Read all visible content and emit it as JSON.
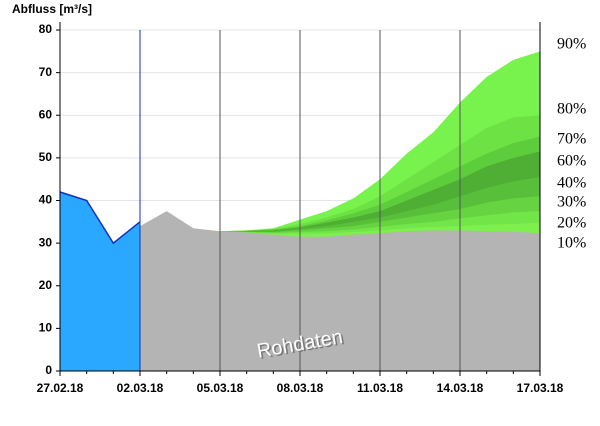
{
  "chart_data": {
    "type": "area",
    "title": "Abfluss [m³/s]",
    "annotation": "Rohdaten",
    "x": [
      "27.02.18",
      "28.02.18",
      "01.03.18",
      "02.03.18",
      "03.03.18",
      "04.03.18",
      "05.03.18",
      "06.03.18",
      "07.03.18",
      "08.03.18",
      "09.03.18",
      "10.03.18",
      "11.03.18",
      "12.03.18",
      "13.03.18",
      "14.03.18",
      "15.03.18",
      "16.03.18",
      "17.03.18"
    ],
    "xlim": [
      "27.02.18",
      "17.03.18"
    ],
    "xticks": [
      "27.02.18",
      "02.03.18",
      "05.03.18",
      "08.03.18",
      "11.03.18",
      "14.03.18",
      "17.03.18"
    ],
    "ylim": [
      0,
      80
    ],
    "yticks": [
      0,
      10,
      20,
      30,
      40,
      50,
      60,
      70,
      80
    ],
    "grid": true,
    "observed": {
      "color": "#2aa8ff",
      "line_color": "#1030c0",
      "values": [
        42,
        40,
        30,
        35,
        null,
        null,
        null,
        null,
        null,
        null,
        null,
        null,
        null,
        null,
        null,
        null,
        null,
        null,
        null
      ]
    },
    "raw": {
      "color": "#b4b4b4",
      "values": [
        null,
        null,
        null,
        34,
        37.5,
        33.5,
        32.8,
        32.5,
        32,
        31.5,
        31.5,
        32,
        32.3,
        32.8,
        33,
        33,
        32.8,
        32.7,
        32.3
      ]
    },
    "series": [
      {
        "name": "90%",
        "color": "#78f24c",
        "values": [
          null,
          null,
          null,
          null,
          null,
          null,
          32.8,
          33,
          33.5,
          35.5,
          37.5,
          40.5,
          45,
          51,
          56,
          63,
          69,
          73,
          75
        ]
      },
      {
        "name": "80%",
        "color": "#6ce244",
        "values": [
          null,
          null,
          null,
          null,
          null,
          null,
          32.8,
          33,
          33.3,
          34.5,
          36,
          38,
          41,
          45,
          49,
          53,
          57,
          59.5,
          60
        ]
      },
      {
        "name": "70%",
        "color": "#5ecd3c",
        "values": [
          null,
          null,
          null,
          null,
          null,
          null,
          32.8,
          32.9,
          33.2,
          34,
          35.3,
          37,
          39,
          42,
          45,
          48,
          51,
          53.5,
          55
        ]
      },
      {
        "name": "60%",
        "color": "#4fae34",
        "values": [
          null,
          null,
          null,
          null,
          null,
          null,
          32.8,
          32.8,
          33,
          33.7,
          34.8,
          36,
          37.5,
          40,
          42.5,
          45,
          48,
          50,
          51.5
        ]
      },
      {
        "name": "40%",
        "color": "#58bf3a",
        "values": [
          null,
          null,
          null,
          null,
          null,
          null,
          32.8,
          32.7,
          32.8,
          33.3,
          34,
          35,
          36,
          37.5,
          39,
          41,
          43,
          44.5,
          45.5
        ]
      },
      {
        "name": "30%",
        "color": "#66d440",
        "values": [
          null,
          null,
          null,
          null,
          null,
          null,
          32.8,
          32.6,
          32.6,
          33,
          33.5,
          34,
          35,
          36,
          37,
          38,
          39.5,
          40.5,
          41
        ]
      },
      {
        "name": "20%",
        "color": "#72e648",
        "values": [
          null,
          null,
          null,
          null,
          null,
          null,
          32.8,
          32.6,
          32.4,
          32.6,
          32.8,
          33.2,
          33.8,
          34.5,
          35,
          35.8,
          36.5,
          37.2,
          37.5
        ]
      },
      {
        "name": "10%",
        "color": "#7ef04e",
        "values": [
          null,
          null,
          null,
          null,
          null,
          null,
          32.8,
          32.5,
          32.2,
          32.2,
          32.3,
          32.6,
          33,
          33.5,
          33.8,
          34,
          34.3,
          34.5,
          34.8
        ]
      }
    ]
  }
}
